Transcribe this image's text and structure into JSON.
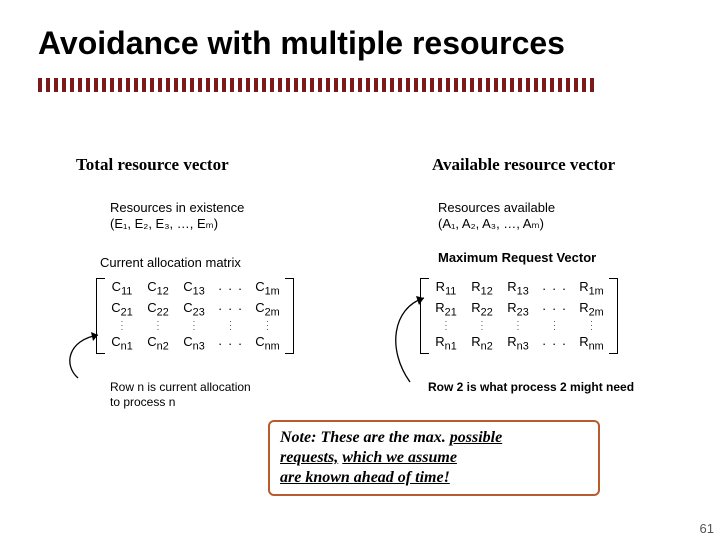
{
  "title": "Avoidance with multiple resources",
  "divider": {
    "color": "#7a1a1a"
  },
  "left": {
    "vector_title": "Total resource vector",
    "resources_line_label": "Resources in existence",
    "resources_line_values": "(E₁, E₂, E₃, …, Eₘ)",
    "matrix_title": "Current allocation matrix",
    "matrix": {
      "prefix": "C",
      "rows_shown": [
        "1",
        "2",
        "n"
      ],
      "cols_shown": [
        "1",
        "2",
        "3",
        "m"
      ]
    },
    "row_caption_line1": "Row n is current allocation",
    "row_caption_line2": "to process n"
  },
  "right": {
    "vector_title": "Available resource vector",
    "resources_line_label": "Resources available",
    "resources_line_values": "(A₁, A₂, A₃, …, Aₘ)",
    "matrix_title": "Maximum Request Vector",
    "matrix": {
      "prefix": "R",
      "rows_shown": [
        "1",
        "2",
        "n"
      ],
      "cols_shown": [
        "1",
        "2",
        "3",
        "m"
      ]
    },
    "row2_caption": "Row 2 is what process 2 might need"
  },
  "note": {
    "prefix": "Note: ",
    "body_line1": "These are the max. ",
    "ul1": "possible",
    "body_line2_pre": "",
    "ul2": "requests,",
    "body_line2_mid": " ",
    "ul3": "which we assume",
    "ul4": "are known ahead of time!",
    "border_color": "#b85c2e"
  },
  "page_number": "61",
  "arrow_color": "#000000"
}
